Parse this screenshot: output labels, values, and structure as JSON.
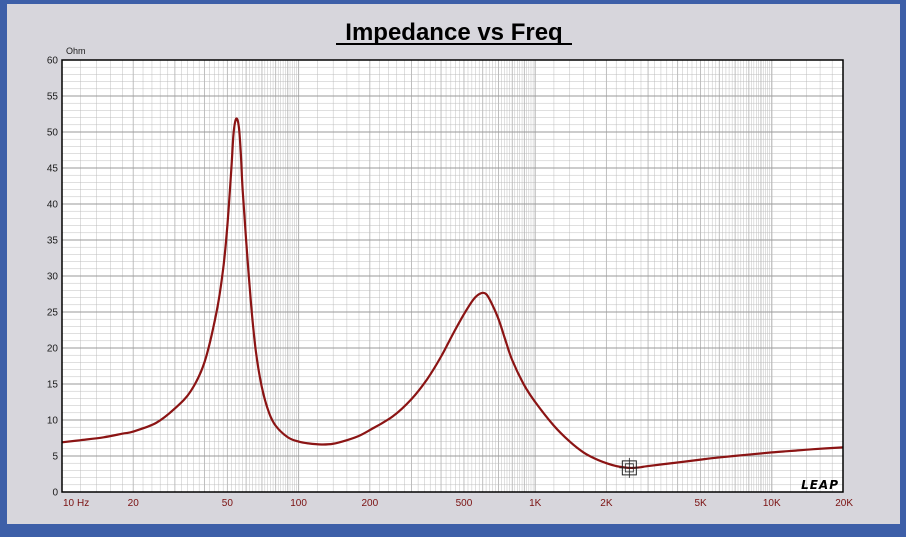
{
  "chart_data": {
    "type": "line",
    "title": "Impedance vs Freq",
    "ylabel": "Ohm",
    "xscale": "log",
    "xlim": [
      10,
      20000
    ],
    "ylim": [
      0,
      60
    ],
    "y_ticks": [
      "0",
      "5",
      "10",
      "15",
      "20",
      "25",
      "30",
      "35",
      "40",
      "45",
      "50",
      "55",
      "60"
    ],
    "x_ticks": [
      {
        "value": 10,
        "label": "10"
      },
      {
        "value": 20,
        "label": "20"
      },
      {
        "value": 50,
        "label": "50"
      },
      {
        "value": 100,
        "label": "100"
      },
      {
        "value": 200,
        "label": "200"
      },
      {
        "value": 500,
        "label": "500"
      },
      {
        "value": 1000,
        "label": "1K"
      },
      {
        "value": 2000,
        "label": "2K"
      },
      {
        "value": 5000,
        "label": "5K"
      },
      {
        "value": 10000,
        "label": "10K"
      },
      {
        "value": 20000,
        "label": "20K"
      }
    ],
    "x_unit_label": "Hz",
    "grid": true,
    "logo": "LEAP",
    "colors": {
      "curve": "#8b1414",
      "grid": "#b8b8b8",
      "xtick": "#7a1010"
    },
    "series": [
      {
        "x": [
          10,
          12,
          15,
          18,
          20,
          25,
          30,
          35,
          40,
          45,
          48,
          50,
          52,
          53,
          54,
          55,
          56,
          57,
          58,
          60,
          63,
          66,
          70,
          75,
          80,
          90,
          100,
          110,
          125,
          140,
          160,
          180,
          200,
          250,
          300,
          350,
          400,
          450,
          500,
          550,
          590,
          620,
          650,
          700,
          750,
          800,
          900,
          1000,
          1200,
          1400,
          1600,
          1800,
          2000,
          2200,
          2400,
          2500,
          2600,
          2800,
          3000,
          4000,
          5000,
          6000,
          8000,
          10000,
          12000,
          15000,
          20000
        ],
        "y": [
          6.9,
          7.2,
          7.6,
          8.1,
          8.4,
          9.6,
          11.6,
          14.0,
          18.0,
          25.0,
          31.0,
          37.0,
          45.0,
          49.5,
          51.5,
          51.8,
          50.5,
          47.0,
          42.0,
          35.0,
          26.0,
          19.5,
          14.5,
          11.0,
          9.2,
          7.6,
          7.0,
          6.75,
          6.6,
          6.7,
          7.2,
          7.8,
          8.6,
          10.5,
          12.9,
          15.7,
          18.8,
          22.0,
          24.7,
          26.8,
          27.6,
          27.5,
          26.4,
          24.0,
          21.0,
          18.3,
          14.8,
          12.5,
          9.2,
          7.0,
          5.5,
          4.6,
          4.0,
          3.6,
          3.4,
          3.35,
          3.35,
          3.45,
          3.6,
          4.1,
          4.5,
          4.8,
          5.2,
          5.5,
          5.7,
          5.95,
          6.2
        ]
      }
    ]
  }
}
